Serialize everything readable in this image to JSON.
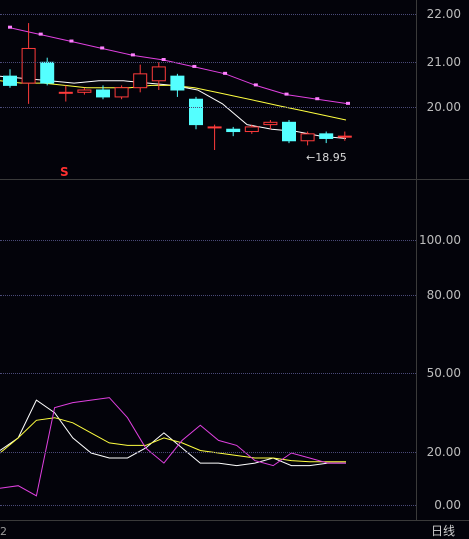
{
  "price_axis": {
    "ticks": [
      "22.00",
      "21.00",
      "20.00"
    ]
  },
  "osc_axis": {
    "ticks": [
      "100.00",
      "80.00",
      "50.00",
      "20.00",
      "0.00"
    ]
  },
  "low_marker_text": "←18.95",
  "signal_marker": "S",
  "period_label": "日线",
  "bottom_left_text": "2",
  "colors": {
    "up": "#ff3b3b",
    "down": "#54ffff",
    "ma_magenta": "#e040e0",
    "ma_white": "#ffffff",
    "ma_yellow": "#ffff40"
  },
  "chart_data": [
    {
      "type": "candlestick",
      "ylim": [
        18.3,
        22.2
      ],
      "candles": [
        {
          "o": 20.55,
          "h": 20.7,
          "l": 20.3,
          "c": 20.35
        },
        {
          "o": 20.4,
          "h": 21.7,
          "l": 19.95,
          "c": 21.15
        },
        {
          "o": 20.85,
          "h": 20.95,
          "l": 20.35,
          "c": 20.4
        },
        {
          "o": 20.2,
          "h": 20.35,
          "l": 20.0,
          "c": 20.2
        },
        {
          "o": 20.2,
          "h": 20.3,
          "l": 20.15,
          "c": 20.25
        },
        {
          "o": 20.25,
          "h": 20.35,
          "l": 20.05,
          "c": 20.1
        },
        {
          "o": 20.1,
          "h": 20.35,
          "l": 20.05,
          "c": 20.3
        },
        {
          "o": 20.3,
          "h": 20.8,
          "l": 20.2,
          "c": 20.6
        },
        {
          "o": 20.45,
          "h": 20.85,
          "l": 20.25,
          "c": 20.75
        },
        {
          "o": 20.55,
          "h": 20.6,
          "l": 20.1,
          "c": 20.25
        },
        {
          "o": 20.05,
          "h": 20.1,
          "l": 19.4,
          "c": 19.5
        },
        {
          "o": 19.45,
          "h": 19.5,
          "l": 18.95,
          "c": 19.45
        },
        {
          "o": 19.4,
          "h": 19.45,
          "l": 19.25,
          "c": 19.35
        },
        {
          "o": 19.35,
          "h": 19.5,
          "l": 19.3,
          "c": 19.45
        },
        {
          "o": 19.5,
          "h": 19.6,
          "l": 19.4,
          "c": 19.55
        },
        {
          "o": 19.55,
          "h": 19.6,
          "l": 19.1,
          "c": 19.15
        },
        {
          "o": 19.15,
          "h": 19.35,
          "l": 19.05,
          "c": 19.3
        },
        {
          "o": 19.3,
          "h": 19.35,
          "l": 19.1,
          "c": 19.2
        },
        {
          "o": 19.25,
          "h": 19.35,
          "l": 19.15,
          "c": 19.25
        }
      ],
      "series": [
        {
          "values": [
            21.6,
            21.45,
            21.3,
            21.15,
            21.0,
            20.9,
            20.75,
            20.6,
            20.35,
            20.15,
            20.05,
            19.95
          ]
        },
        {
          "values": [
            20.55,
            20.5,
            20.45,
            20.4,
            20.45,
            20.45,
            20.4,
            20.35,
            20.25,
            19.95,
            19.5,
            19.4,
            19.35,
            19.25,
            19.2
          ]
        },
        {
          "values": [
            20.45,
            20.4,
            20.4,
            20.35,
            20.3,
            20.3,
            20.3,
            20.35,
            20.35,
            20.3,
            20.2,
            20.1,
            20.0,
            19.9,
            19.8,
            19.7,
            19.6
          ]
        }
      ]
    },
    {
      "type": "line",
      "ylim": [
        -5,
        130
      ],
      "series": [
        {
          "values": [
            23,
            28,
            43,
            38,
            28,
            22,
            20,
            20,
            24,
            30,
            24,
            18,
            18,
            17,
            18,
            20,
            17,
            17,
            18,
            18
          ]
        },
        {
          "values": [
            22,
            28,
            35,
            36,
            34,
            30,
            26,
            25,
            25,
            28,
            26,
            23,
            22,
            21,
            20,
            20,
            19,
            18.5,
            18.5,
            18.5
          ]
        },
        {
          "values": [
            8,
            9,
            5,
            40,
            42,
            43,
            44,
            36,
            24,
            18,
            27,
            33,
            27,
            25,
            19,
            17,
            22,
            20,
            18,
            18
          ]
        }
      ]
    }
  ]
}
